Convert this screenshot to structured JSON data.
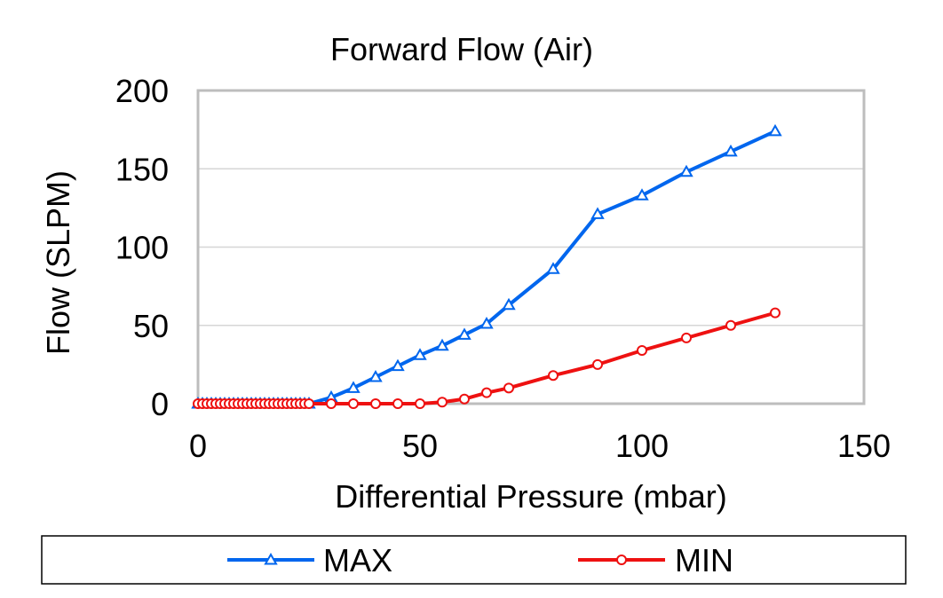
{
  "chart_data": {
    "type": "line",
    "title": "Forward Flow (Air)",
    "xlabel": "Differential Pressure (mbar)",
    "ylabel": "Flow (SLPM)",
    "xlim": [
      0,
      150
    ],
    "ylim": [
      0,
      200
    ],
    "x_ticks": [
      "0",
      "50",
      "100",
      "150"
    ],
    "y_ticks": [
      "0",
      "50",
      "100",
      "150",
      "200"
    ],
    "x_tick_values": [
      0,
      50,
      100,
      150
    ],
    "y_tick_values": [
      0,
      50,
      100,
      150,
      200
    ],
    "grid": true,
    "legend_position": "bottom",
    "series": [
      {
        "name": "MAX",
        "color": "#0066ee",
        "marker": "triangle",
        "x": [
          0,
          1,
          2,
          3,
          4,
          5,
          6,
          7,
          8,
          9,
          10,
          11,
          12,
          13,
          14,
          15,
          16,
          17,
          18,
          19,
          20,
          21,
          22,
          23,
          24,
          25,
          30,
          35,
          40,
          45,
          50,
          55,
          60,
          65,
          70,
          80,
          90,
          100,
          110,
          120,
          130
        ],
        "y": [
          0,
          0,
          0,
          0,
          0,
          0,
          0,
          0,
          0,
          0,
          0,
          0,
          0,
          0,
          0,
          0,
          0,
          0,
          0,
          0,
          0,
          0,
          0,
          0,
          0,
          0,
          4,
          10,
          17,
          24,
          31,
          37,
          44,
          51,
          63,
          86,
          121,
          133,
          148,
          161,
          174
        ]
      },
      {
        "name": "MIN",
        "color": "#ee1111",
        "marker": "circle",
        "x": [
          0,
          1,
          2,
          3,
          4,
          5,
          6,
          7,
          8,
          9,
          10,
          11,
          12,
          13,
          14,
          15,
          16,
          17,
          18,
          19,
          20,
          21,
          22,
          23,
          24,
          25,
          30,
          35,
          40,
          45,
          50,
          55,
          60,
          65,
          70,
          80,
          90,
          100,
          110,
          120,
          130
        ],
        "y": [
          0,
          0,
          0,
          0,
          0,
          0,
          0,
          0,
          0,
          0,
          0,
          0,
          0,
          0,
          0,
          0,
          0,
          0,
          0,
          0,
          0,
          0,
          0,
          0,
          0,
          0,
          0,
          0,
          0,
          0,
          0,
          1,
          3,
          7,
          10,
          18,
          25,
          34,
          42,
          50,
          58
        ]
      }
    ]
  }
}
